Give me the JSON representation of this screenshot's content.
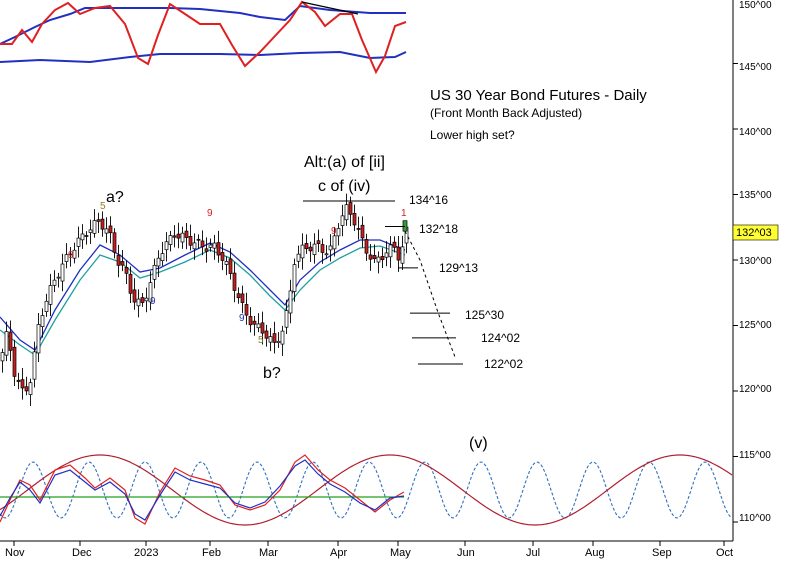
{
  "chart_data": {
    "type": "candlestick",
    "title": "US 30 Year Bond Futures - Daily",
    "subtitle": "(Front Month Back Adjusted)",
    "comment": "Lower high set?",
    "y_axis": {
      "ticks": [
        "150^00",
        "145^00",
        "140^00",
        "135^00",
        "130^00",
        "125^00",
        "120^00",
        "115^00",
        "110^00"
      ],
      "tick_values": [
        150,
        145,
        140,
        135,
        130,
        125,
        120,
        115,
        110
      ],
      "current_price_label": "132^03",
      "current_price": 132.1
    },
    "x_axis": {
      "ticks": [
        "Nov",
        "Dec",
        "2023",
        "Feb",
        "Mar",
        "Apr",
        "May",
        "Jun",
        "Jul",
        "Aug",
        "Sep",
        "Oct"
      ]
    },
    "wave_labels": [
      {
        "text": "a?",
        "anchor": "dec-high"
      },
      {
        "text": "b?",
        "anchor": "mar-low"
      },
      {
        "text": "Alt:(a) of [ii]",
        "anchor": "apr-high"
      },
      {
        "text": "c of (iv)",
        "anchor": "apr-high"
      },
      {
        "text": "(v)",
        "anchor": "future-target"
      }
    ],
    "count_labels": [
      {
        "text": "5",
        "color": "#8b7d2a"
      },
      {
        "text": "9",
        "color": "#d22222"
      },
      {
        "text": "9",
        "color": "#2233aa"
      },
      {
        "text": "9",
        "color": "#d22222"
      },
      {
        "text": "9",
        "color": "#2233aa"
      },
      {
        "text": "5",
        "color": "#8b7d2a"
      },
      {
        "text": "9",
        "color": "#d22222"
      },
      {
        "text": "1",
        "color": "#d22222"
      }
    ],
    "levels": [
      {
        "label": "134^16",
        "value": 134.5
      },
      {
        "label": "132^18",
        "value": 132.56
      },
      {
        "label": "129^13",
        "value": 129.4
      },
      {
        "label": "125^30",
        "value": 125.94
      },
      {
        "label": "124^02",
        "value": 124.06
      },
      {
        "label": "122^02",
        "value": 122.06
      }
    ],
    "colors": {
      "bull": "#ffffff",
      "bear": "#c82020",
      "ma1": "#2030c0",
      "ma2": "#20a0a0",
      "oscillator": "#e02020",
      "band": "#2030c0",
      "cycle_dotted": "#3070c0",
      "cycle_red": "#b02030",
      "flat_line": "#20a020"
    }
  }
}
